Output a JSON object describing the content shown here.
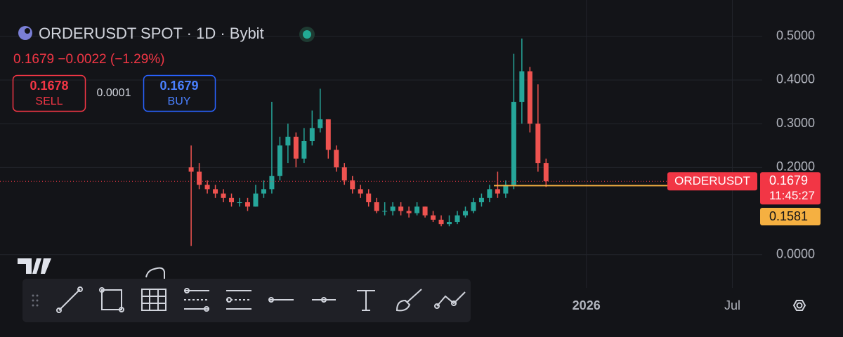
{
  "header": {
    "title": "ORDERUSDT SPOT · 1D · Bybit",
    "change": "0.1679 −0.0022 (−1.29%)",
    "sell_price": "0.1678",
    "sell_label": "SELL",
    "spread": "0.0001",
    "buy_price": "0.1679",
    "buy_label": "BUY"
  },
  "chart_data": {
    "type": "candlestick",
    "up_color": "#26a69a",
    "down_color": "#ef5350",
    "x": [
      -490,
      -480,
      -470,
      -460,
      -450,
      -440,
      -430,
      -420,
      -410,
      -400,
      -390,
      -380,
      -370,
      -360,
      -350,
      -340,
      -330,
      -320,
      -310,
      -300,
      -290,
      -280,
      -270,
      -260,
      -250,
      -240,
      -230,
      -220,
      -210,
      -200,
      -190,
      -180,
      -170,
      -160,
      -150,
      -140,
      -130,
      -120,
      -110,
      -100,
      -90,
      -80,
      -70,
      -60,
      -50
    ],
    "open": [
      0.2,
      0.19,
      0.16,
      0.15,
      0.14,
      0.13,
      0.12,
      0.12,
      0.11,
      0.14,
      0.15,
      0.18,
      0.25,
      0.27,
      0.22,
      0.26,
      0.29,
      0.31,
      0.24,
      0.2,
      0.17,
      0.15,
      0.14,
      0.12,
      0.1,
      0.1,
      0.11,
      0.1,
      0.095,
      0.11,
      0.09,
      0.08,
      0.07,
      0.075,
      0.09,
      0.1,
      0.12,
      0.13,
      0.15,
      0.14,
      0.16,
      0.35,
      0.42,
      0.3,
      0.21
    ],
    "high": [
      0.25,
      0.21,
      0.17,
      0.16,
      0.15,
      0.14,
      0.13,
      0.13,
      0.16,
      0.17,
      0.35,
      0.27,
      0.3,
      0.28,
      0.29,
      0.33,
      0.38,
      0.31,
      0.25,
      0.21,
      0.18,
      0.16,
      0.15,
      0.13,
      0.12,
      0.12,
      0.12,
      0.11,
      0.12,
      0.11,
      0.1,
      0.09,
      0.09,
      0.1,
      0.11,
      0.13,
      0.14,
      0.16,
      0.19,
      0.17,
      0.46,
      0.495,
      0.43,
      0.39,
      0.22
    ],
    "low": [
      0.02,
      0.15,
      0.14,
      0.13,
      0.12,
      0.11,
      0.11,
      0.1,
      0.11,
      0.13,
      0.14,
      0.17,
      0.21,
      0.2,
      0.21,
      0.25,
      0.28,
      0.22,
      0.19,
      0.16,
      0.14,
      0.13,
      0.11,
      0.095,
      0.09,
      0.09,
      0.09,
      0.085,
      0.09,
      0.085,
      0.075,
      0.065,
      0.065,
      0.07,
      0.085,
      0.095,
      0.11,
      0.12,
      0.13,
      0.13,
      0.15,
      0.3,
      0.28,
      0.19,
      0.155
    ],
    "close": [
      0.19,
      0.16,
      0.15,
      0.14,
      0.13,
      0.12,
      0.12,
      0.11,
      0.14,
      0.15,
      0.18,
      0.25,
      0.27,
      0.22,
      0.26,
      0.29,
      0.31,
      0.24,
      0.2,
      0.17,
      0.15,
      0.14,
      0.12,
      0.1,
      0.1,
      0.11,
      0.1,
      0.095,
      0.11,
      0.09,
      0.08,
      0.07,
      0.075,
      0.09,
      0.1,
      0.12,
      0.13,
      0.15,
      0.14,
      0.16,
      0.35,
      0.42,
      0.3,
      0.21,
      0.168
    ],
    "xlim": [
      -727,
      218
    ],
    "xticks": [
      {
        "value": 0,
        "label": "2026"
      },
      {
        "value": 181,
        "label": "Jul"
      }
    ],
    "ylim": [
      -0.06,
      0.535
    ],
    "yticks": [
      {
        "value": 0,
        "label": "0.0000"
      },
      {
        "value": 0.2,
        "label": "0.2000"
      },
      {
        "value": 0.3,
        "label": "0.3000"
      },
      {
        "value": 0.4,
        "label": "0.4000"
      },
      {
        "value": 0.5,
        "label": "0.5000"
      }
    ],
    "grid": true,
    "price_line": {
      "name": "ORDERUSDT",
      "value": 0.1679,
      "countdown": "11:45:27",
      "color": "#f23645"
    },
    "horizontal_line": {
      "value": 0.1581,
      "color": "#f5b041"
    }
  }
}
